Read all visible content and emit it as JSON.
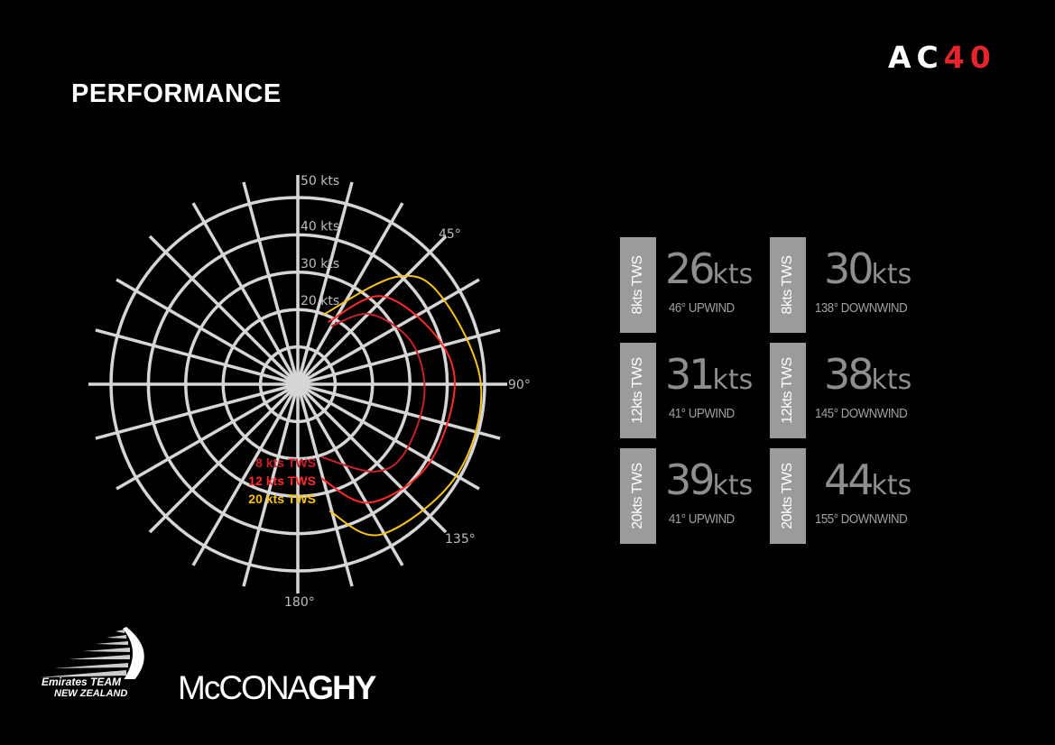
{
  "header": {
    "title": "PERFORMANCE",
    "logo": {
      "text_white": "AC",
      "text_red": "40",
      "red": "#e4262c"
    }
  },
  "chart_data": {
    "type": "polar-line",
    "angle_unit": "degrees",
    "angle_zero": "top",
    "direction": "clockwise",
    "radial_unit": "kts",
    "rlim": [
      0,
      50
    ],
    "radial_ticks": [
      {
        "value": 20,
        "label": "20 kts"
      },
      {
        "value": 30,
        "label": "30 kts"
      },
      {
        "value": 40,
        "label": "40 kts"
      },
      {
        "value": 50,
        "label": "50 kts"
      }
    ],
    "angle_ticks": [
      {
        "value": 45,
        "label": "45°"
      },
      {
        "value": 90,
        "label": "90°"
      },
      {
        "value": 135,
        "label": "135°"
      },
      {
        "value": 180,
        "label": "180°"
      }
    ],
    "spoke_step_deg": 15,
    "grid": true,
    "legend_placement": "bottom-left of center",
    "series": [
      {
        "name": "8 kts TWS",
        "color": "#c8202a",
        "points": [
          [
            30,
            18
          ],
          [
            46,
            27
          ],
          [
            70,
            32.5
          ],
          [
            95,
            34
          ],
          [
            123,
            34
          ],
          [
            139,
            31
          ],
          [
            162,
            20.5
          ]
        ]
      },
      {
        "name": "12 kts TWS",
        "color": "#ff2b2b",
        "points": [
          [
            26,
            18.5
          ],
          [
            43.5,
            32.5
          ],
          [
            70,
            39
          ],
          [
            91,
            42
          ],
          [
            122,
            41
          ],
          [
            149,
            37
          ],
          [
            166,
            26
          ]
        ]
      },
      {
        "name": "20 kts TWS",
        "color": "#f7c21a",
        "points": [
          [
            20,
            19.8
          ],
          [
            42.5,
            39
          ],
          [
            58,
            45
          ],
          [
            90,
            49
          ],
          [
            120,
            49
          ],
          [
            151,
            46
          ],
          [
            166,
            35
          ]
        ]
      }
    ]
  },
  "stats": {
    "colors": {
      "box": "#9b9b9b",
      "value": "#8e8e8e"
    },
    "cards": [
      {
        "tws": "8kts TWS",
        "value": "26",
        "unit": "kts",
        "angle": "46° UPWIND"
      },
      {
        "tws": "8kts TWS",
        "value": "30",
        "unit": "kts",
        "angle": "138° DOWNWIND"
      },
      {
        "tws": "12kts TWS",
        "value": "31",
        "unit": "kts",
        "angle": "41° UPWIND"
      },
      {
        "tws": "12kts TWS",
        "value": "38",
        "unit": "kts",
        "angle": "145° DOWNWIND"
      },
      {
        "tws": "20kts TWS",
        "value": "39",
        "unit": "kts",
        "angle": "41° UPWIND"
      },
      {
        "tws": "20kts TWS",
        "value": "44",
        "unit": "kts",
        "angle": "155° DOWNWIND"
      }
    ]
  },
  "footer": {
    "etnz_logo": {
      "line1": "Emirates TEAM",
      "line2": "NEW ZEALAND"
    },
    "mcconaghy_logo": {
      "light": "McCONA",
      "bold": "GHY"
    }
  }
}
